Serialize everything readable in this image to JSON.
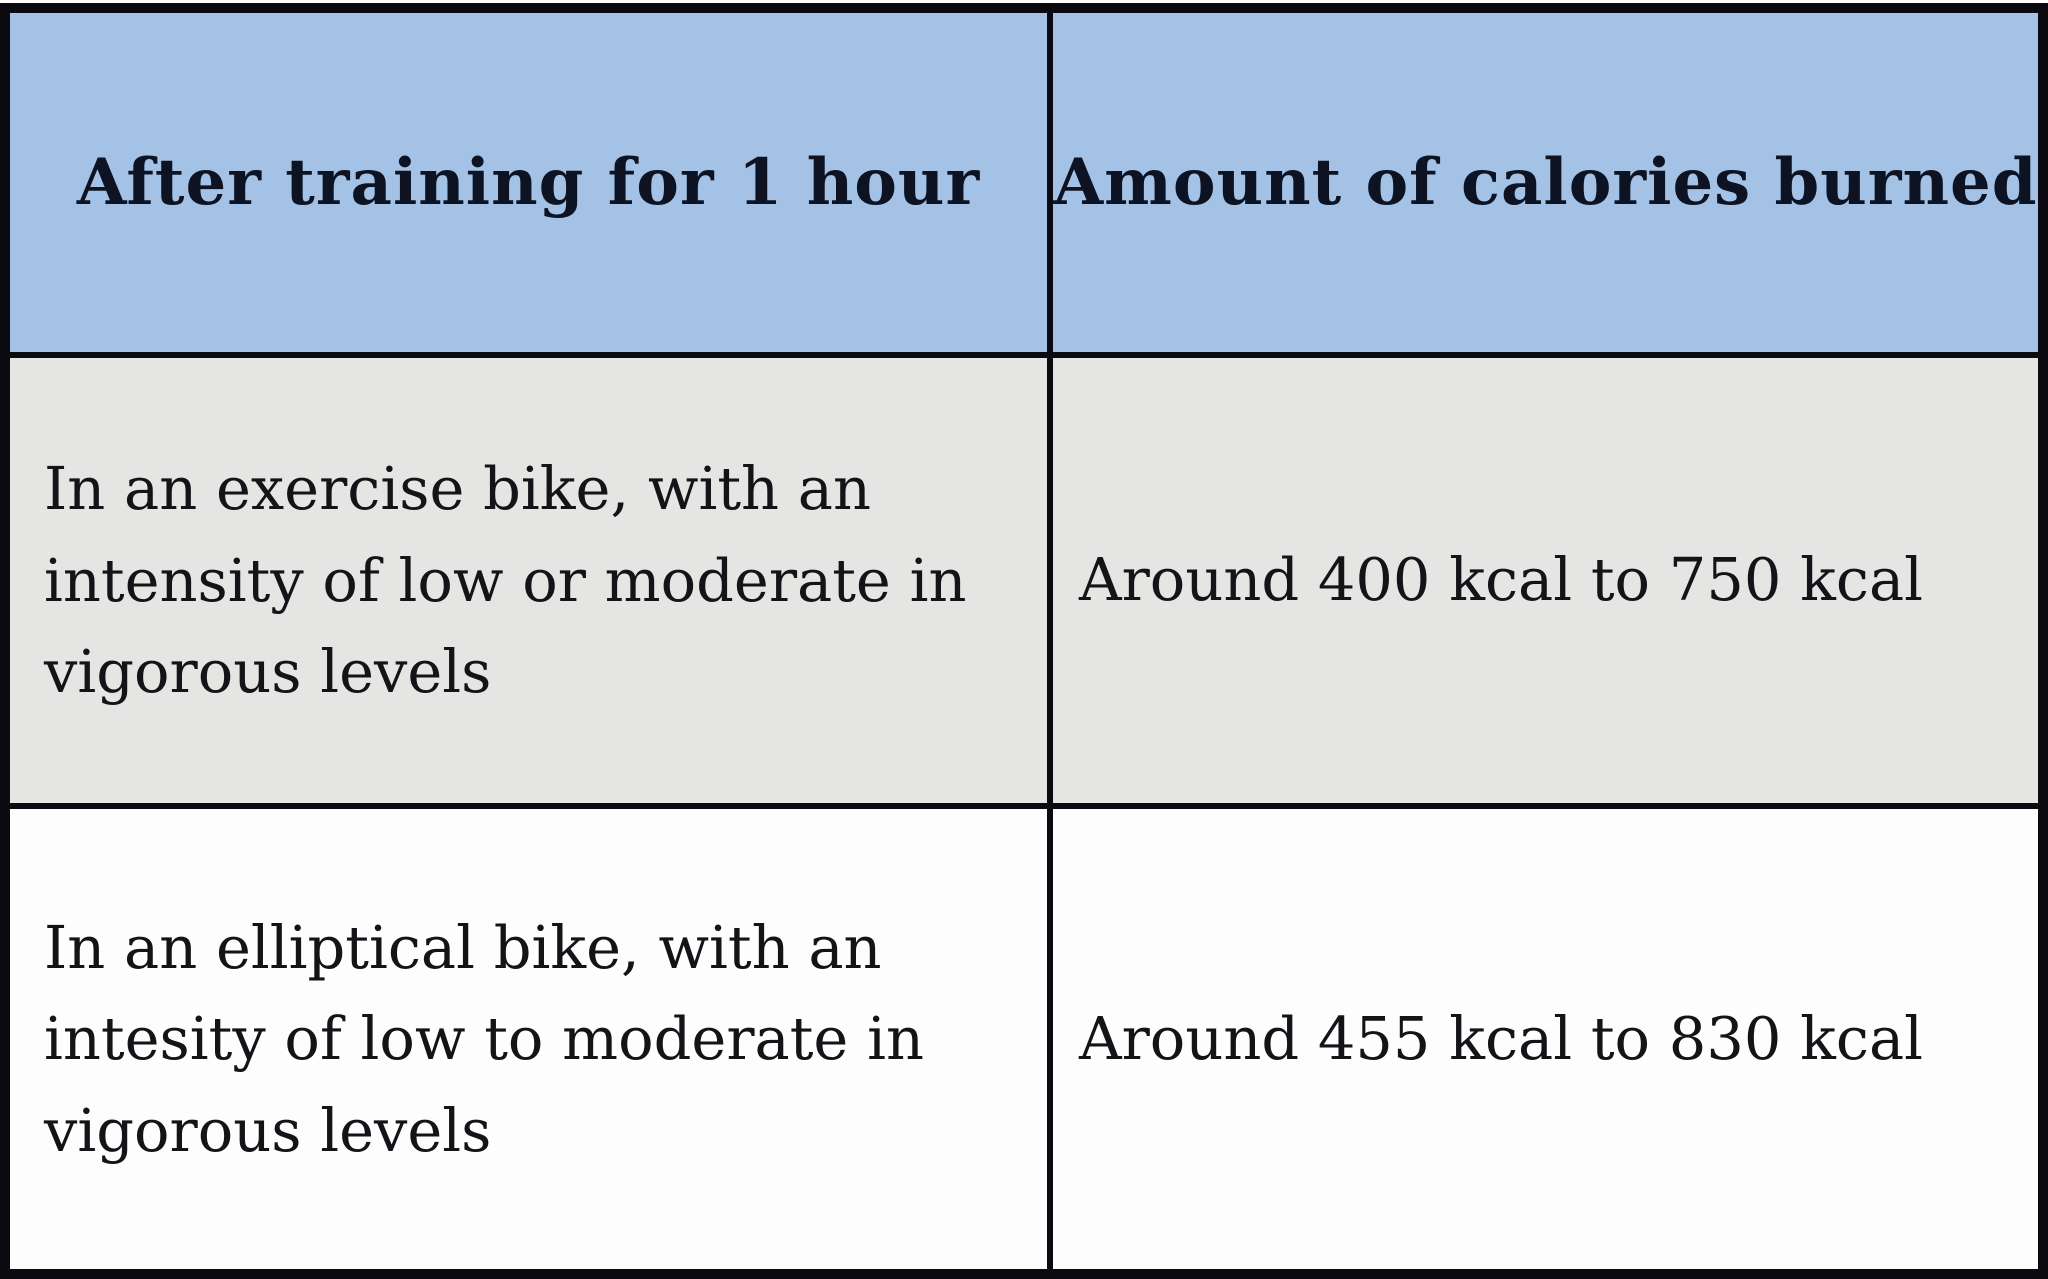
{
  "table": {
    "header": {
      "activity_label": "After training for 1 hour",
      "calories_label": "Amount of calories burned"
    },
    "rows": [
      {
        "activity": "In an exercise bike, with an\nintensity of low or moderate in\nvigorous levels",
        "calories": "Around 400 kcal to 750 kcal"
      },
      {
        "activity": "In an elliptical bike, with an\nintesity of low to moderate in\nvigorous levels",
        "calories": "Around 455 kcal to 830 kcal"
      }
    ],
    "colors": {
      "header_bg": "#a4c2e5",
      "row1_bg": "#e5e5e4",
      "row2_bg": "#fdfdfd",
      "border": "#0a0a10",
      "text": "#131318"
    }
  }
}
